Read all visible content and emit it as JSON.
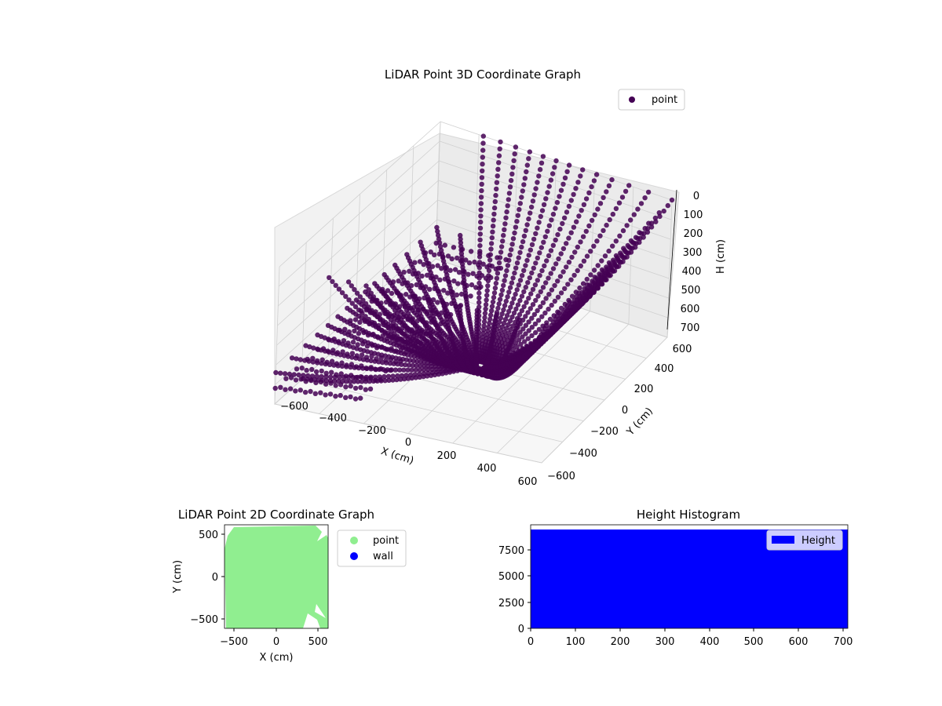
{
  "chart_data": [
    {
      "type": "scatter",
      "projection": "3d",
      "title": "LiDAR Point 3D Coordinate Graph",
      "xlabel": "X (cm)",
      "ylabel": "Y (cm)",
      "zlabel": "H (cm)",
      "xticks": [
        "−600",
        "−400",
        "−200",
        "0",
        "200",
        "400",
        "600"
      ],
      "yticks": [
        "−600",
        "−400",
        "−200",
        "0",
        "200",
        "400",
        "600"
      ],
      "zticks": [
        "0",
        "100",
        "200",
        "300",
        "400",
        "500",
        "600",
        "700"
      ],
      "xlim": [
        -600,
        600
      ],
      "ylim": [
        -600,
        600
      ],
      "zlim": [
        700,
        0
      ],
      "z_axis_inverted": true,
      "grid": true,
      "legend": {
        "entries": [
          "point"
        ],
        "placement": "top-right"
      },
      "series": [
        {
          "name": "point",
          "color": "#440154",
          "structure": "dome-shaped scan: radial point curves rising from a low center near (0,0,~700) out to the borders at H≈0, with flat floor-like rows toward negative X",
          "approx_extent": {
            "x": [
              -600,
              600
            ],
            "y": [
              -600,
              600
            ],
            "h": [
              0,
              700
            ]
          }
        }
      ]
    },
    {
      "type": "scatter",
      "title": "LiDAR Point 2D Coordinate Graph",
      "xlabel": "X (cm)",
      "ylabel": "Y (cm)",
      "xticks": [
        "−500",
        "0",
        "500"
      ],
      "yticks": [
        "−500",
        "0",
        "500"
      ],
      "xlim": [
        -620,
        620
      ],
      "ylim": [
        -620,
        620
      ],
      "legend": {
        "entries": [
          "point",
          "wall"
        ],
        "placement": "outside-right"
      },
      "series": [
        {
          "name": "point",
          "color": "#90ee90",
          "coverage": "nearly full square with gaps near corners"
        },
        {
          "name": "wall",
          "color": "#0000ff",
          "coverage": "not visible (hidden under points)"
        }
      ]
    },
    {
      "type": "bar",
      "subtype": "histogram",
      "title": "Height Histogram",
      "xticks": [
        "0",
        "100",
        "200",
        "300",
        "400",
        "500",
        "600",
        "700"
      ],
      "yticks": [
        "0",
        "2500",
        "5000",
        "7500"
      ],
      "xlim": [
        0,
        710
      ],
      "ylim": [
        0,
        9800
      ],
      "legend": {
        "entries": [
          "Height"
        ],
        "placement": "top-right"
      },
      "series": [
        {
          "name": "Height",
          "color": "#0000ff",
          "bin_range": [
            0,
            710
          ],
          "approx_count_per_bin": 9400
        }
      ]
    }
  ]
}
